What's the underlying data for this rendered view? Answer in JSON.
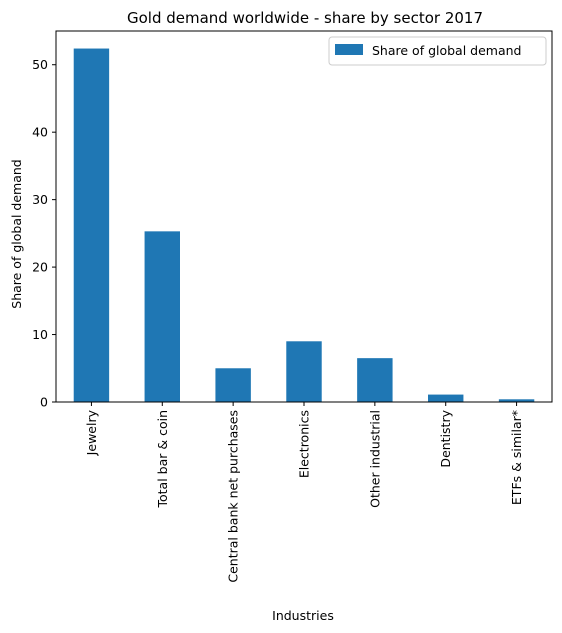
{
  "chart_data": {
    "type": "bar",
    "title": "Gold demand worldwide - share by sector 2017",
    "xlabel": "Industries",
    "ylabel": "Share of global demand",
    "categories": [
      "Jewelry",
      "Total bar & coin",
      "Central bank net purchases",
      "Electronics",
      "Other industrial",
      "Dentistry",
      "ETFs & similar*"
    ],
    "series": [
      {
        "name": "Share of global demand",
        "values": [
          52.4,
          25.3,
          5.0,
          9.0,
          6.5,
          1.1,
          0.4
        ],
        "color": "#1f77b4"
      }
    ],
    "ylim": [
      0,
      55
    ],
    "yticks": [
      0,
      10,
      20,
      30,
      40,
      50
    ],
    "grid": false,
    "legend_position": "top-right"
  }
}
